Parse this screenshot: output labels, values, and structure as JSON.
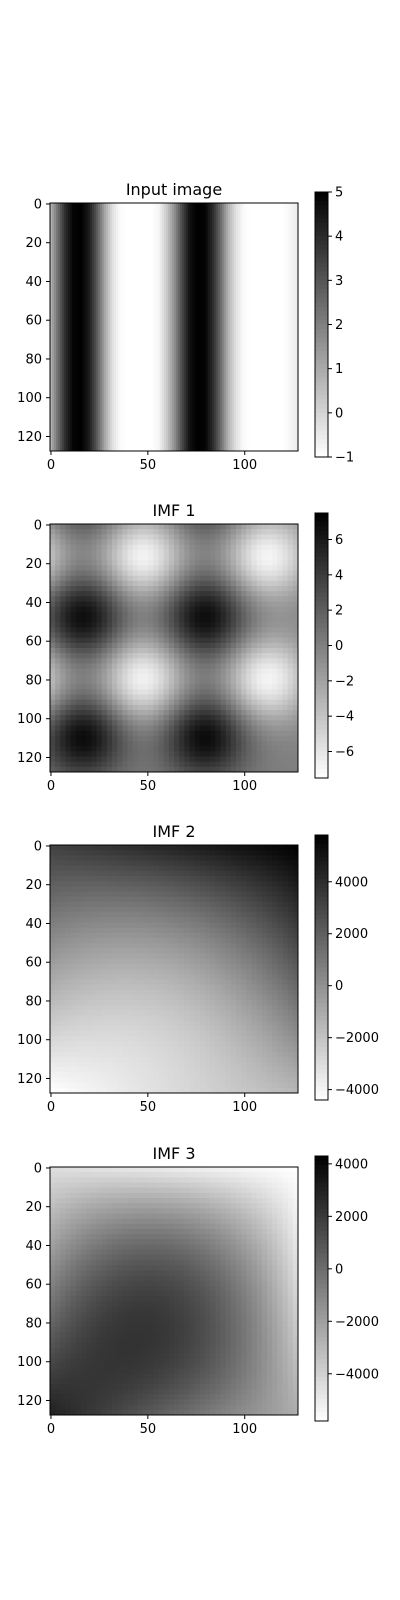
{
  "chart_data": [
    {
      "type": "heatmap",
      "title": "Input image",
      "colormap": "gray_r",
      "pattern": "vertical-stripes",
      "image_size": [
        128,
        128
      ],
      "xticks": [
        0,
        50,
        100
      ],
      "yticks": [
        0,
        20,
        40,
        60,
        80,
        100,
        120
      ],
      "xlim": [
        -0.5,
        127.5
      ],
      "ylim": [
        127.5,
        -0.5
      ],
      "value_range": [
        -1,
        5
      ],
      "colorbar_ticks": [
        -1,
        0,
        1,
        2,
        3,
        4,
        5
      ],
      "colorbar_labels": [
        "−1",
        "0",
        "1",
        "2",
        "3",
        "4",
        "5"
      ],
      "profile_x": [
        0,
        4,
        8,
        12,
        16,
        20,
        24,
        28,
        32,
        36,
        40,
        44,
        48,
        52,
        56,
        60,
        64,
        68,
        72,
        76,
        80,
        84,
        88,
        92,
        96,
        100,
        104,
        108,
        112,
        116,
        120,
        124,
        127
      ],
      "profile_value": [
        0.6,
        2.4,
        4.0,
        4.9,
        5.0,
        4.4,
        3.0,
        1.2,
        -0.2,
        -0.9,
        -1.0,
        -1.0,
        -1.0,
        -1.0,
        -0.8,
        0.2,
        1.5,
        3.2,
        4.6,
        5.0,
        4.9,
        4.0,
        2.5,
        0.8,
        -0.3,
        -0.9,
        -1.0,
        -1.0,
        -1.0,
        -1.0,
        -1.0,
        -0.8,
        -0.6
      ]
    },
    {
      "type": "heatmap",
      "title": "IMF 1",
      "colormap": "gray_r",
      "pattern": "checkerboard-blobs",
      "image_size": [
        128,
        128
      ],
      "xticks": [
        0,
        50,
        100
      ],
      "yticks": [
        0,
        20,
        40,
        60,
        80,
        100,
        120
      ],
      "xlim": [
        -0.5,
        127.5
      ],
      "ylim": [
        127.5,
        -0.5
      ],
      "value_range": [
        -7.5,
        7.5
      ],
      "colorbar_ticks": [
        -6,
        -4,
        -2,
        0,
        2,
        4,
        6
      ],
      "colorbar_labels": [
        "−6",
        "−4",
        "−2",
        "0",
        "2",
        "4",
        "6"
      ],
      "blob_centers_x": [
        17,
        80
      ],
      "blob_centers_y": [
        [
          48,
          110
        ],
        [
          17,
          80
        ]
      ],
      "dark_peak": 7,
      "light_peak": -7
    },
    {
      "type": "heatmap",
      "title": "IMF 2",
      "colormap": "gray_r",
      "pattern": "smooth-surface",
      "image_size": [
        128,
        128
      ],
      "xticks": [
        0,
        50,
        100
      ],
      "yticks": [
        0,
        20,
        40,
        60,
        80,
        100,
        120
      ],
      "xlim": [
        -0.5,
        127.5
      ],
      "ylim": [
        127.5,
        -0.5
      ],
      "value_range": [
        -4400,
        5800
      ],
      "colorbar_ticks": [
        -4000,
        -2000,
        0,
        2000,
        4000
      ],
      "colorbar_labels": [
        "−4000",
        "−2000",
        "0",
        "2000",
        "4000"
      ],
      "corner_values": {
        "top_left": 3200,
        "top_right": 5800,
        "bottom_left": -4400,
        "bottom_right": -1500
      },
      "center_value": -1000
    },
    {
      "type": "heatmap",
      "title": "IMF 3",
      "colormap": "gray_r",
      "pattern": "smooth-surface",
      "image_size": [
        128,
        128
      ],
      "xticks": [
        0,
        50,
        100
      ],
      "yticks": [
        0,
        20,
        40,
        60,
        80,
        100,
        120
      ],
      "xlim": [
        -0.5,
        127.5
      ],
      "ylim": [
        127.5,
        -0.5
      ],
      "value_range": [
        -5800,
        4300
      ],
      "colorbar_ticks": [
        -4000,
        -2000,
        0,
        2000,
        4000
      ],
      "colorbar_labels": [
        "−4000",
        "−2000",
        "0",
        "2000",
        "4000"
      ],
      "corner_values": {
        "top_left": -4500,
        "top_right": -5800,
        "bottom_left": 3000,
        "bottom_right": -2500
      },
      "center_value": 1500
    }
  ]
}
